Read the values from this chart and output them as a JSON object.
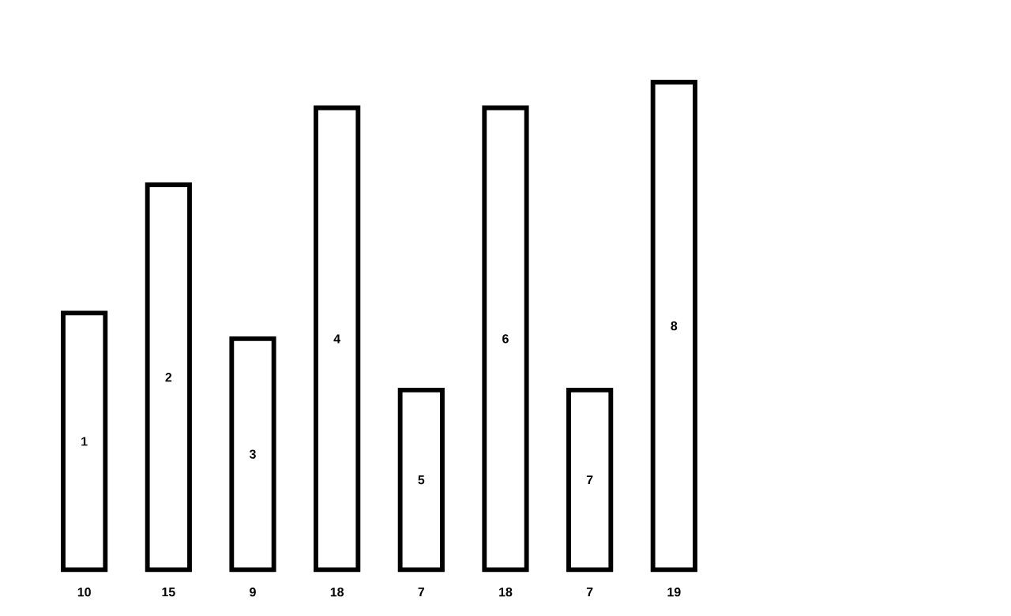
{
  "chart_data": {
    "type": "bar",
    "categories": [
      "1",
      "2",
      "3",
      "4",
      "5",
      "6",
      "7",
      "8"
    ],
    "values": [
      10,
      15,
      9,
      18,
      7,
      18,
      7,
      19
    ],
    "color": "#000000",
    "data_labels": true
  }
}
